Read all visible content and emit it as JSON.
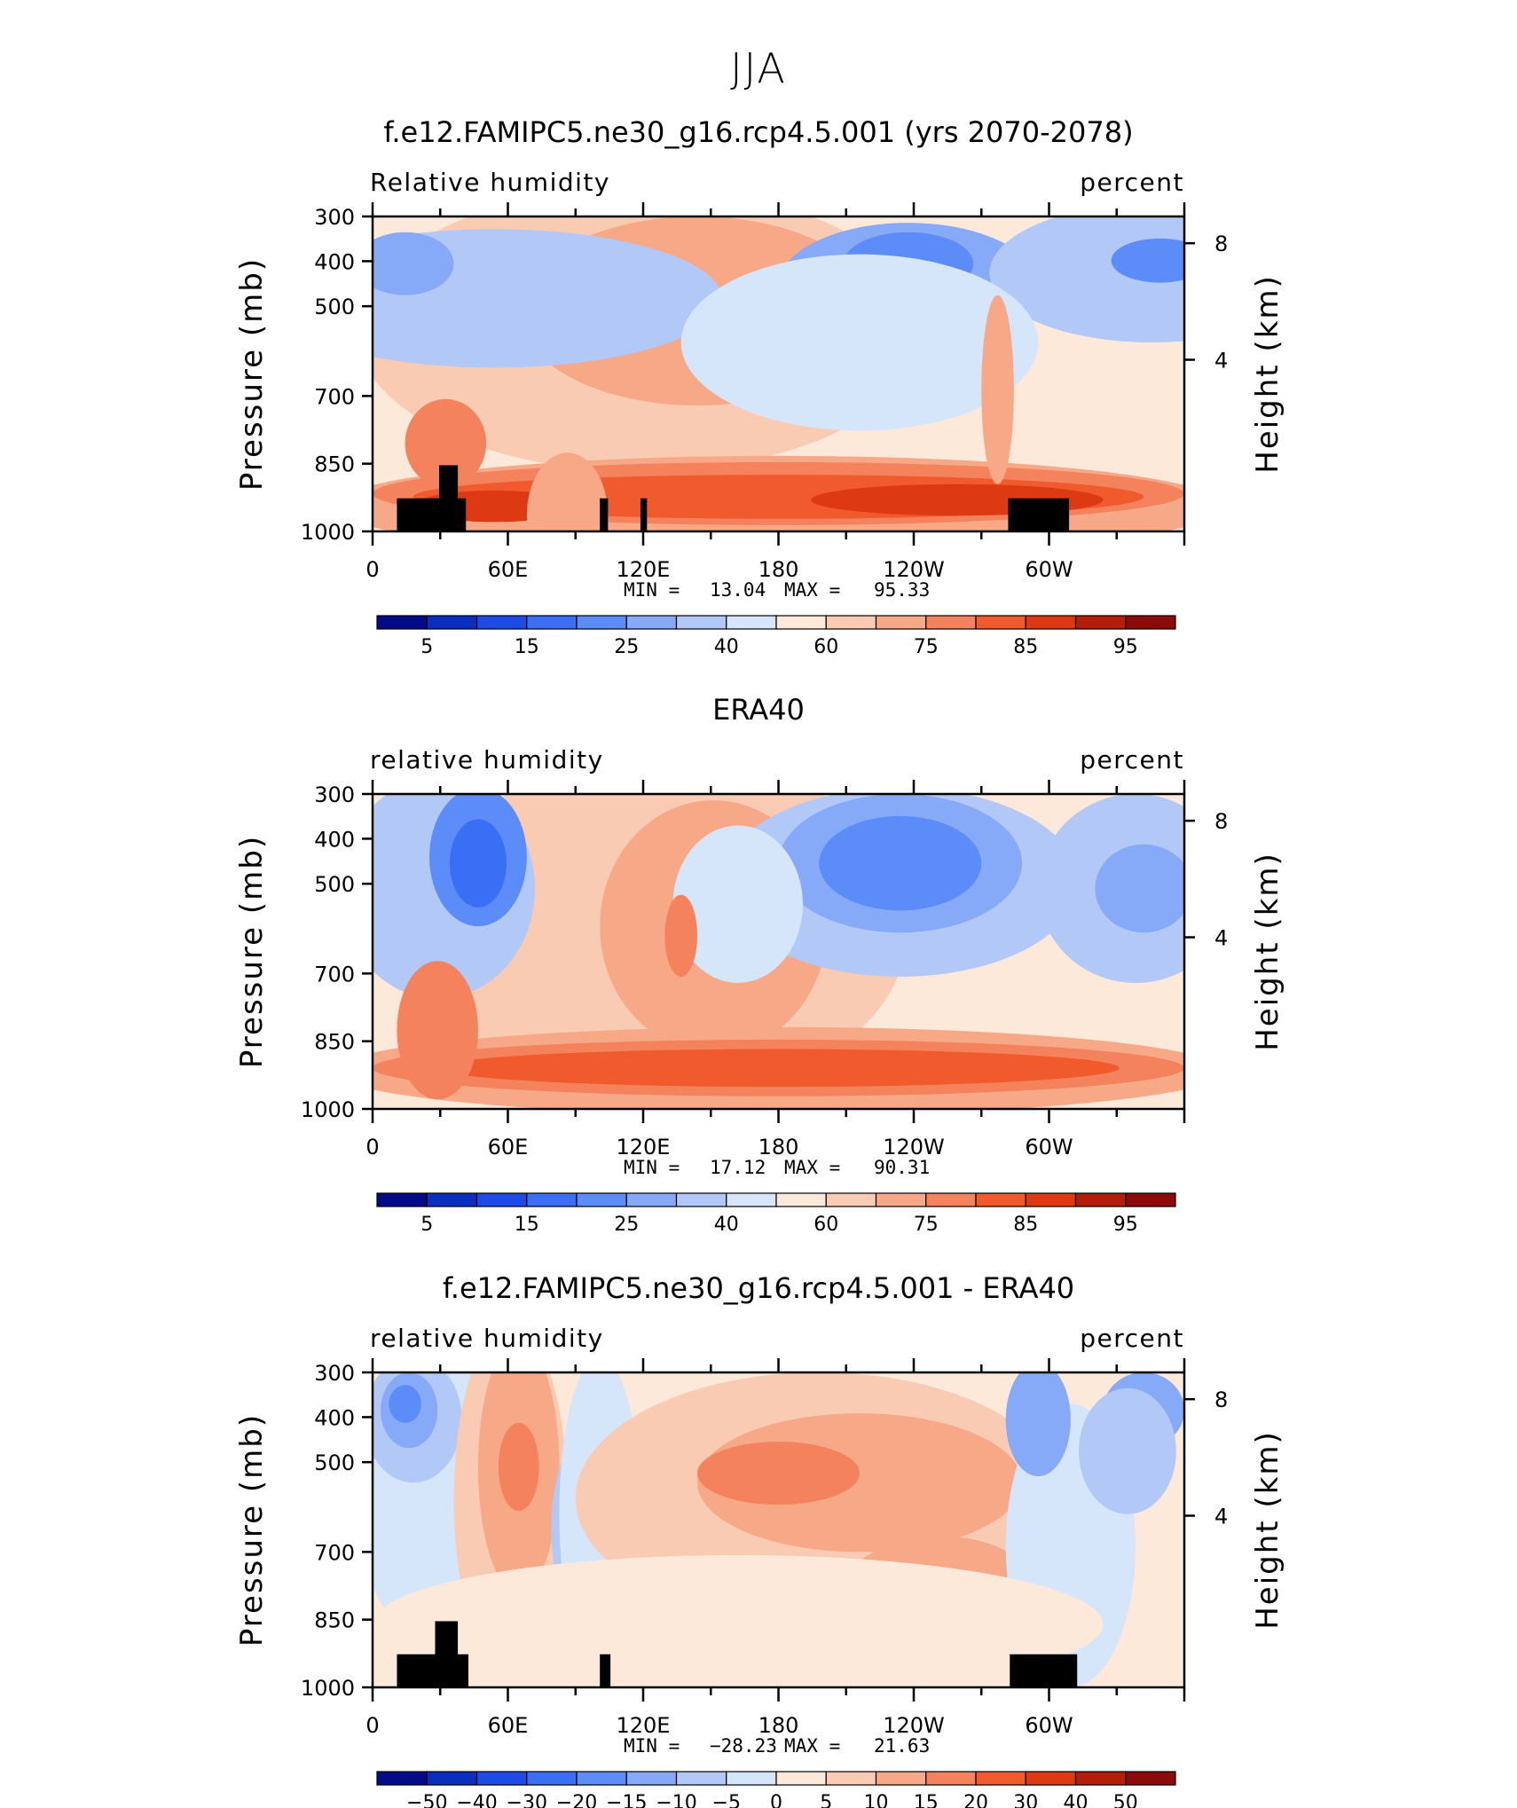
{
  "page_title": "JJA",
  "chart_data": [
    {
      "type": "heatmap",
      "title": "f.e12.FAMIPC5.ne30_g16.rcp4.5.001 (yrs 2070-2078)",
      "variable_label": "Relative humidity",
      "units_label": "percent",
      "ylabel": "Pressure (mb)",
      "ylabel_right": "Height (km)",
      "y_ticks": [
        "300",
        "400",
        "500",
        "700",
        "850",
        "1000"
      ],
      "y_right_ticks": [
        "8",
        "4"
      ],
      "x_ticks": [
        "0",
        "60E",
        "120E",
        "180",
        "120W",
        "60W"
      ],
      "min_label": "MIN =",
      "min_value": "13.04",
      "max_label": "MAX =",
      "max_value": "95.33",
      "colorbar_labels": [
        "5",
        "15",
        "25",
        "40",
        "60",
        "75",
        "85",
        "95"
      ],
      "colorbar_colors": [
        "#050a87",
        "#0a2fbe",
        "#1e4be6",
        "#3a6ef5",
        "#5b8cf7",
        "#86aaf7",
        "#b2c8f7",
        "#d6e6fa",
        "#fde9d9",
        "#f9cbb2",
        "#f7a886",
        "#f4825c",
        "#f05a2c",
        "#dd3a14",
        "#b31d0a",
        "#8c0a0a"
      ]
    },
    {
      "type": "heatmap",
      "title": "ERA40",
      "variable_label": "relative humidity",
      "units_label": "percent",
      "ylabel": "Pressure (mb)",
      "ylabel_right": "Height (km)",
      "y_ticks": [
        "300",
        "400",
        "500",
        "700",
        "850",
        "1000"
      ],
      "y_right_ticks": [
        "8",
        "4"
      ],
      "x_ticks": [
        "0",
        "60E",
        "120E",
        "180",
        "120W",
        "60W"
      ],
      "min_label": "MIN =",
      "min_value": "17.12",
      "max_label": "MAX =",
      "max_value": "90.31",
      "colorbar_labels": [
        "5",
        "15",
        "25",
        "40",
        "60",
        "75",
        "85",
        "95"
      ],
      "colorbar_colors": [
        "#050a87",
        "#0a2fbe",
        "#1e4be6",
        "#3a6ef5",
        "#5b8cf7",
        "#86aaf7",
        "#b2c8f7",
        "#d6e6fa",
        "#fde9d9",
        "#f9cbb2",
        "#f7a886",
        "#f4825c",
        "#f05a2c",
        "#dd3a14",
        "#b31d0a",
        "#8c0a0a"
      ]
    },
    {
      "type": "heatmap",
      "title": "f.e12.FAMIPC5.ne30_g16.rcp4.5.001 - ERA40",
      "variable_label": "relative humidity",
      "units_label": "percent",
      "ylabel": "Pressure (mb)",
      "ylabel_right": "Height (km)",
      "y_ticks": [
        "300",
        "400",
        "500",
        "700",
        "850",
        "1000"
      ],
      "y_right_ticks": [
        "8",
        "4"
      ],
      "x_ticks": [
        "0",
        "60E",
        "120E",
        "180",
        "120W",
        "60W"
      ],
      "min_label": "MIN =",
      "min_value": "−28.23",
      "max_label": "MAX =",
      "max_value": "21.63",
      "colorbar_labels": [
        "−50",
        "−40",
        "−30",
        "−20",
        "−15",
        "−10",
        "−5",
        "0",
        "5",
        "10",
        "15",
        "20",
        "30",
        "40",
        "50"
      ],
      "colorbar_colors": [
        "#050a87",
        "#0a2fbe",
        "#1e4be6",
        "#3a6ef5",
        "#5b8cf7",
        "#86aaf7",
        "#b2c8f7",
        "#d6e6fa",
        "#fde9d9",
        "#f9cbb2",
        "#f7a886",
        "#f4825c",
        "#f05a2c",
        "#dd3a14",
        "#b31d0a",
        "#8c0a0a"
      ]
    }
  ]
}
